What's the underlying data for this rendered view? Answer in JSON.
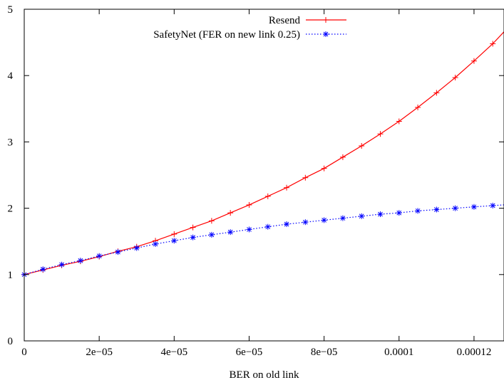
{
  "chart_data": {
    "type": "line",
    "title": "",
    "xlabel": "BER on old link",
    "ylabel": "",
    "xlim": [
      0,
      0.000128
    ],
    "ylim": [
      0,
      5
    ],
    "grid": false,
    "legend_position": "top-right",
    "x_ticks": [
      {
        "value": 0,
        "label": "0"
      },
      {
        "value": 2e-05,
        "label": "2e−05"
      },
      {
        "value": 4e-05,
        "label": "4e−05"
      },
      {
        "value": 6e-05,
        "label": "6e−05"
      },
      {
        "value": 8e-05,
        "label": "8e−05"
      },
      {
        "value": 0.0001,
        "label": "0.0001"
      },
      {
        "value": 0.00012,
        "label": "0.00012"
      }
    ],
    "y_ticks": [
      {
        "value": 0,
        "label": "0"
      },
      {
        "value": 1,
        "label": "1"
      },
      {
        "value": 2,
        "label": "2"
      },
      {
        "value": 3,
        "label": "3"
      },
      {
        "value": 4,
        "label": "4"
      },
      {
        "value": 5,
        "label": "5"
      }
    ],
    "series": [
      {
        "name": "Resend",
        "color": "#ff0000",
        "line_style": "solid",
        "marker": "plus",
        "x": [
          0,
          5e-06,
          1e-05,
          1.5e-05,
          2e-05,
          2.5e-05,
          3e-05,
          3.5e-05,
          4e-05,
          4.5e-05,
          5e-05,
          5.5e-05,
          6e-05,
          6.5e-05,
          7e-05,
          7.5e-05,
          8e-05,
          8.5e-05,
          9e-05,
          9.5e-05,
          0.0001,
          0.000105,
          0.00011,
          0.000115,
          0.00012,
          0.000125,
          0.000128
        ],
        "y": [
          1.0,
          1.07,
          1.14,
          1.2,
          1.27,
          1.35,
          1.42,
          1.51,
          1.61,
          1.71,
          1.81,
          1.93,
          2.05,
          2.18,
          2.31,
          2.46,
          2.6,
          2.77,
          2.94,
          3.12,
          3.31,
          3.52,
          3.74,
          3.97,
          4.22,
          4.48,
          4.66
        ]
      },
      {
        "name": "SafetyNet (FER on new link 0.25)",
        "color": "#0000ff",
        "line_style": "dotted",
        "marker": "star",
        "x": [
          0,
          5e-06,
          1e-05,
          1.5e-05,
          2e-05,
          2.5e-05,
          3e-05,
          3.5e-05,
          4e-05,
          4.5e-05,
          5e-05,
          5.5e-05,
          6e-05,
          6.5e-05,
          7e-05,
          7.5e-05,
          8e-05,
          8.5e-05,
          9e-05,
          9.5e-05,
          0.0001,
          0.000105,
          0.00011,
          0.000115,
          0.00012,
          0.000125,
          0.000128
        ],
        "y": [
          1.0,
          1.08,
          1.15,
          1.21,
          1.28,
          1.34,
          1.4,
          1.46,
          1.51,
          1.56,
          1.6,
          1.64,
          1.68,
          1.72,
          1.76,
          1.79,
          1.82,
          1.85,
          1.88,
          1.91,
          1.93,
          1.96,
          1.98,
          2.0,
          2.02,
          2.04,
          2.05
        ]
      }
    ]
  }
}
